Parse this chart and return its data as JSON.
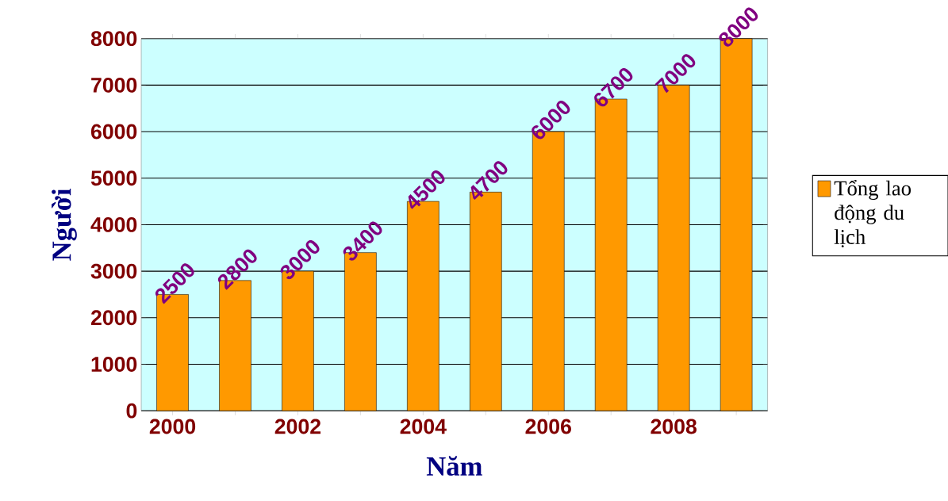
{
  "chart_data": {
    "type": "bar",
    "xlabel": "Năm",
    "ylabel": "Người",
    "categories": [
      "2000",
      null,
      "2002",
      null,
      "2004",
      null,
      "2006",
      null,
      "2008",
      null
    ],
    "series": [
      {
        "name": "Tổng lao động du lịch",
        "color": "#ff9900",
        "values": [
          2500,
          2800,
          3000,
          3400,
          4500,
          4700,
          6000,
          6700,
          7000,
          8000
        ]
      }
    ],
    "ylim": [
      0,
      8000
    ],
    "yticks": [
      0,
      1000,
      2000,
      3000,
      4000,
      5000,
      6000,
      7000,
      8000
    ],
    "grid": "y",
    "legend": "right",
    "data_labels": true
  }
}
